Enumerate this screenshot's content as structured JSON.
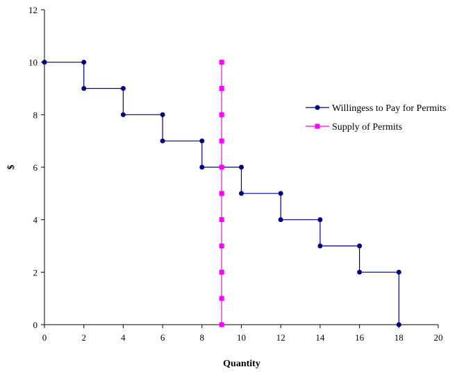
{
  "chart_data": {
    "type": "line",
    "title": "",
    "xlabel": "Quantity",
    "ylabel": "$",
    "xlim": [
      0,
      20
    ],
    "ylim": [
      0,
      12
    ],
    "x_ticks": [
      0,
      2,
      4,
      6,
      8,
      10,
      12,
      14,
      16,
      18,
      20
    ],
    "y_ticks": [
      0,
      2,
      4,
      6,
      8,
      10,
      12
    ],
    "grid": false,
    "legend_position": "right",
    "series": [
      {
        "name": "Willingess to Pay for Permits",
        "color": "#000080",
        "marker": "circle",
        "x": [
          0,
          2,
          2,
          4,
          4,
          6,
          6,
          8,
          8,
          10,
          10,
          12,
          12,
          14,
          14,
          16,
          16,
          18,
          18
        ],
        "y": [
          10,
          10,
          9,
          9,
          8,
          8,
          7,
          7,
          6,
          6,
          5,
          5,
          4,
          4,
          3,
          3,
          2,
          2,
          0
        ]
      },
      {
        "name": "Supply of Permits",
        "color": "#FF00FF",
        "marker": "square",
        "x": [
          9,
          9,
          9,
          9,
          9,
          9,
          9,
          9,
          9,
          9,
          9
        ],
        "y": [
          0,
          1,
          2,
          3,
          4,
          5,
          6,
          7,
          8,
          9,
          10
        ]
      }
    ]
  }
}
